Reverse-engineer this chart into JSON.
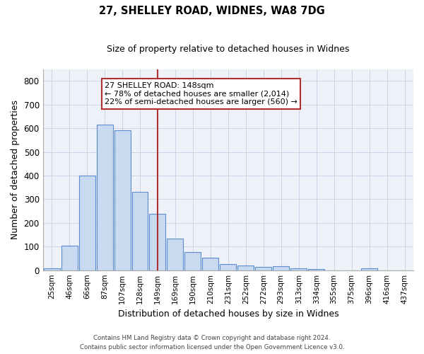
{
  "title": "27, SHELLEY ROAD, WIDNES, WA8 7DG",
  "subtitle": "Size of property relative to detached houses in Widnes",
  "xlabel": "Distribution of detached houses by size in Widnes",
  "ylabel": "Number of detached properties",
  "bin_labels": [
    "25sqm",
    "46sqm",
    "66sqm",
    "87sqm",
    "107sqm",
    "128sqm",
    "149sqm",
    "169sqm",
    "190sqm",
    "210sqm",
    "231sqm",
    "252sqm",
    "272sqm",
    "293sqm",
    "313sqm",
    "334sqm",
    "355sqm",
    "375sqm",
    "396sqm",
    "416sqm",
    "437sqm"
  ],
  "bar_values": [
    7,
    105,
    401,
    614,
    592,
    330,
    237,
    135,
    77,
    53,
    25,
    20,
    15,
    18,
    7,
    5,
    0,
    0,
    9,
    0,
    0
  ],
  "bar_color": "#c9d9f0",
  "bar_edge_color": "#5b8bd0",
  "grid_color": "#c8d4e8",
  "background_color": "#eef2f8",
  "vline_x_index": 6,
  "vline_color": "#b03030",
  "annotation_text": "27 SHELLEY ROAD: 148sqm\n← 78% of detached houses are smaller (2,014)\n22% of semi-detached houses are larger (560) →",
  "annotation_box_color": "#ffffff",
  "annotation_box_edge": "#b03030",
  "ylim": [
    0,
    850
  ],
  "yticks": [
    0,
    100,
    200,
    300,
    400,
    500,
    600,
    700,
    800
  ],
  "footer_line1": "Contains HM Land Registry data © Crown copyright and database right 2024.",
  "footer_line2": "Contains public sector information licensed under the Open Government Licence v3.0."
}
